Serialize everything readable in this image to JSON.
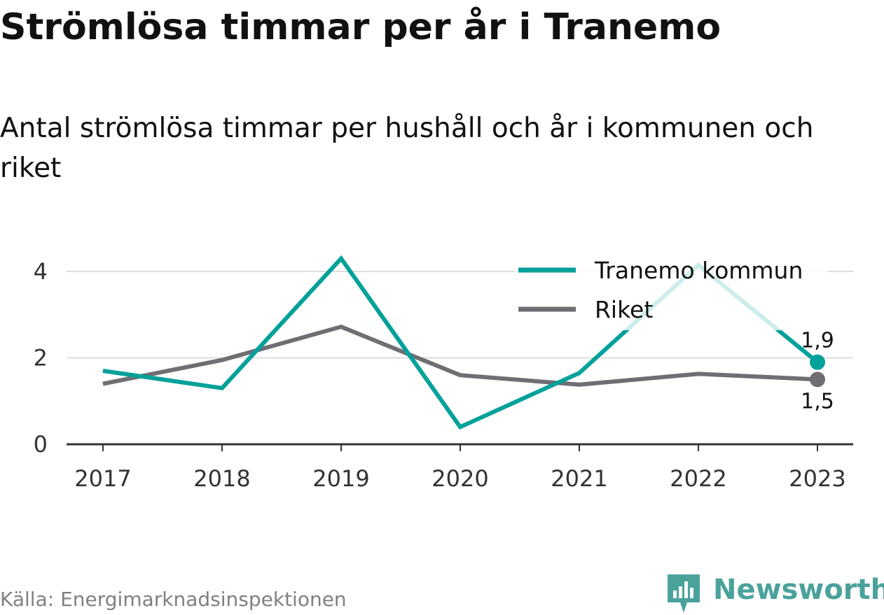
{
  "title": "Strömlösa timmar per år i Tranemo",
  "subtitle": "Antal strömlösa timmar per hushåll och år i kommunen och riket",
  "source": "Källa: Energimarknadsinspektionen",
  "brand": {
    "name": "Newsworthy",
    "icon": "newsworthy-logo-icon",
    "color": "#4aa29b"
  },
  "chart_data": {
    "type": "line",
    "x": [
      "2017",
      "2018",
      "2019",
      "2020",
      "2021",
      "2022",
      "2023"
    ],
    "ylim": [
      0,
      4.6
    ],
    "yticks": [
      0,
      2,
      4
    ],
    "grid": true,
    "legend_position": "top-right",
    "series": [
      {
        "name": "Tranemo kommun",
        "color": "#00a19a",
        "values": [
          1.7,
          1.3,
          4.3,
          0.4,
          1.65,
          4.15,
          1.9
        ],
        "end_label": "1,9"
      },
      {
        "name": "Riket",
        "color": "#6f6e73",
        "values": [
          1.4,
          1.95,
          2.72,
          1.6,
          1.38,
          1.63,
          1.5
        ],
        "end_label": "1,5"
      }
    ]
  }
}
